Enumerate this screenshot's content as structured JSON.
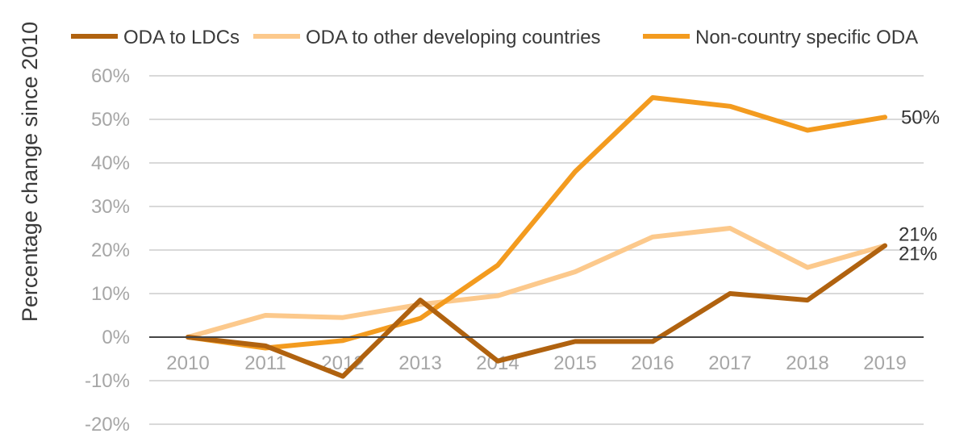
{
  "chart_data": {
    "type": "line",
    "ylabel": "Percentage change since 2010",
    "x": [
      "2010",
      "2011",
      "2012",
      "2013",
      "2014",
      "2015",
      "2016",
      "2017",
      "2018",
      "2019"
    ],
    "ylim": [
      -20,
      60
    ],
    "yticks": [
      60,
      50,
      40,
      30,
      20,
      10,
      0,
      -10,
      -20
    ],
    "ytick_labels": [
      "60%",
      "50%",
      "40%",
      "30%",
      "20%",
      "10%",
      "0%",
      "-10%",
      "-20%"
    ],
    "grid": true,
    "legend_position": "top",
    "series": [
      {
        "name": "ODA to LDCs",
        "color": "#b0620f",
        "values": [
          0,
          -2,
          -9,
          8.5,
          -5.5,
          -1,
          -1,
          10,
          8.5,
          21
        ],
        "end_label": "21%"
      },
      {
        "name": "ODA to other developing countries",
        "color": "#fcc98c",
        "values": [
          0,
          5,
          4.5,
          7.5,
          9.5,
          15,
          23,
          25,
          16,
          21
        ],
        "end_label": "21%"
      },
      {
        "name": "Non-country specific ODA",
        "color": "#f39b1f",
        "values": [
          0,
          -2.5,
          -0.8,
          4.3,
          16.5,
          38,
          55,
          53,
          47.5,
          50.5
        ],
        "end_label": "50%"
      }
    ]
  }
}
